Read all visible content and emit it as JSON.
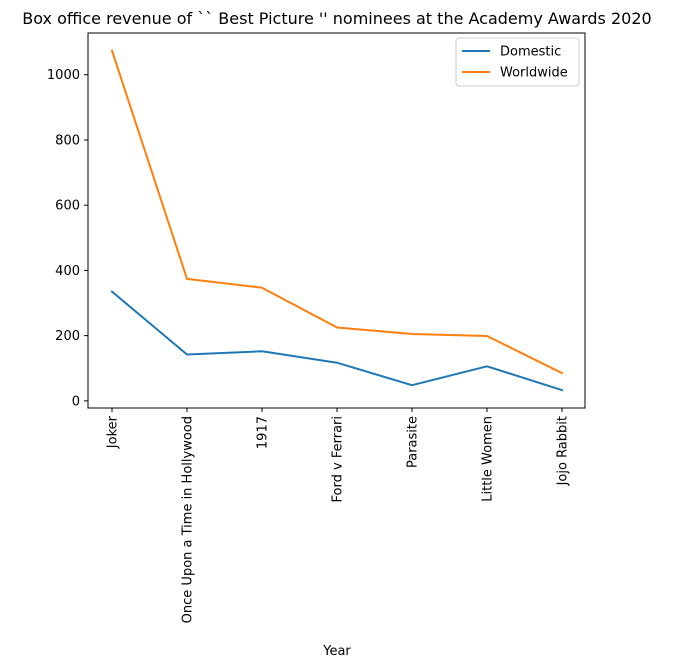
{
  "chart_data": {
    "type": "line",
    "title": "Box office revenue of `` Best Picture '' nominees at the Academy Awards 2020",
    "xlabel": "Year",
    "ylabel": "",
    "categories": [
      "Joker",
      "Once Upon a Time in Hollywood",
      "1917",
      "Ford v Ferrari",
      "Parasite",
      "Little Women",
      "Jojo Rabbit"
    ],
    "series": [
      {
        "name": "Domestic",
        "color": "#1f77b4",
        "values": [
          335,
          142,
          152,
          117,
          48,
          106,
          33
        ]
      },
      {
        "name": "Worldwide",
        "color": "#ff7f0e",
        "values": [
          1074,
          374,
          347,
          225,
          205,
          199,
          85
        ]
      }
    ],
    "yticks": [
      0,
      200,
      400,
      600,
      800,
      1000
    ],
    "ylim": [
      -21.9,
      1128
    ],
    "grid": false,
    "legend_position": "top-right"
  }
}
